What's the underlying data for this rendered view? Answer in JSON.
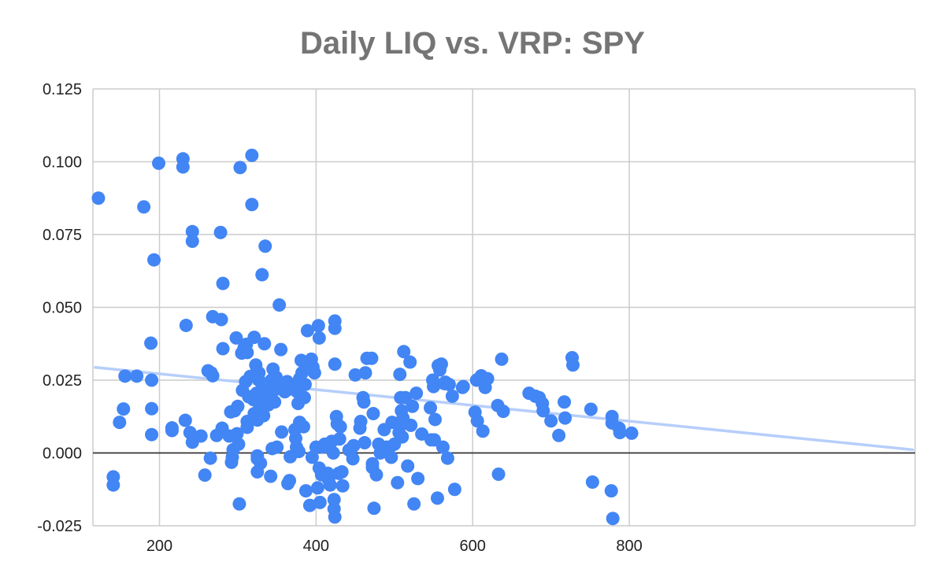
{
  "chart_data": {
    "type": "scatter",
    "title": "Daily LIQ vs. VRP: SPY",
    "xlabel": "",
    "ylabel": "",
    "xlim": [
      115,
      1165
    ],
    "ylim": [
      -0.025,
      0.125
    ],
    "x_ticks": [
      {
        "value": 200,
        "label": "200"
      },
      {
        "value": 400,
        "label": "400"
      },
      {
        "value": 600,
        "label": "600"
      },
      {
        "value": 800,
        "label": "800"
      }
    ],
    "y_ticks": [
      {
        "value": -0.025,
        "label": "-0.025"
      },
      {
        "value": 0.0,
        "label": "0.000"
      },
      {
        "value": 0.025,
        "label": "0.025"
      },
      {
        "value": 0.05,
        "label": "0.050"
      },
      {
        "value": 0.075,
        "label": "0.075"
      },
      {
        "value": 0.1,
        "label": "0.100"
      },
      {
        "value": 0.125,
        "label": "0.125"
      }
    ],
    "grid": true,
    "legend": "none",
    "point_color": "#4285f4",
    "trendline_color": "#b6cefa",
    "trendline": [
      [
        118,
        0.0294
      ],
      [
        1162,
        0.0011
      ]
    ],
    "points": [
      [
        122,
        0.0875
      ],
      [
        141,
        -0.0082
      ],
      [
        141,
        -0.011
      ],
      [
        149,
        0.0105
      ],
      [
        154,
        0.0151
      ],
      [
        156,
        0.0264
      ],
      [
        171,
        0.0264
      ],
      [
        180,
        0.0845
      ],
      [
        189,
        0.0377
      ],
      [
        190,
        0.025
      ],
      [
        190,
        0.0152
      ],
      [
        190,
        0.0063
      ],
      [
        193,
        0.0663
      ],
      [
        199,
        0.0995
      ],
      [
        216,
        0.0086
      ],
      [
        216,
        0.0077
      ],
      [
        230,
        0.101
      ],
      [
        230,
        0.0982
      ],
      [
        233,
        0.0112
      ],
      [
        234,
        0.0438
      ],
      [
        239,
        0.007
      ],
      [
        242,
        0.0037
      ],
      [
        242,
        0.076
      ],
      [
        242,
        0.0727
      ],
      [
        253,
        0.0058
      ],
      [
        258,
        -0.0076
      ],
      [
        262,
        0.0282
      ],
      [
        265,
        -0.0018
      ],
      [
        266,
        0.0275
      ],
      [
        268,
        0.0468
      ],
      [
        268,
        0.0265
      ],
      [
        273,
        0.006
      ],
      [
        278,
        0.0757
      ],
      [
        279,
        0.0458
      ],
      [
        280,
        0.0085
      ],
      [
        281,
        0.0358
      ],
      [
        281,
        0.0582
      ],
      [
        289,
        0.0058
      ],
      [
        291,
        0.0141
      ],
      [
        292,
        -0.0032
      ],
      [
        293,
        -0.0015
      ],
      [
        294,
        0.0011
      ],
      [
        296,
        0.0145
      ],
      [
        298,
        0.0395
      ],
      [
        299,
        0.0066
      ],
      [
        300,
        0.016
      ],
      [
        301,
        0.003
      ],
      [
        302,
        -0.0175
      ],
      [
        303,
        0.098
      ],
      [
        305,
        0.0343
      ],
      [
        306,
        0.0215
      ],
      [
        308,
        0.036
      ],
      [
        310,
        0.0245
      ],
      [
        311,
        0.0373
      ],
      [
        312,
        0.0345
      ],
      [
        312,
        0.0108
      ],
      [
        312,
        0.0088
      ],
      [
        314,
        0.0193
      ],
      [
        316,
        0.0263
      ],
      [
        318,
        0.1022
      ],
      [
        318,
        0.0853
      ],
      [
        320,
        0.0183
      ],
      [
        321,
        0.0397
      ],
      [
        321,
        0.0135
      ],
      [
        322,
        0.027
      ],
      [
        323,
        0.0302
      ],
      [
        324,
        0.0205
      ],
      [
        325,
        -0.001
      ],
      [
        325,
        -0.0065
      ],
      [
        325,
        -0.002
      ],
      [
        325,
        0.0113
      ],
      [
        327,
        0.0275
      ],
      [
        327,
        0.025
      ],
      [
        328,
        0.0155
      ],
      [
        329,
        -0.0035
      ],
      [
        330,
        0.021
      ],
      [
        331,
        0.0612
      ],
      [
        331,
        0.022
      ],
      [
        332,
        0.018
      ],
      [
        333,
        0.0128
      ],
      [
        334,
        0.0375
      ],
      [
        335,
        0.071
      ],
      [
        337,
        0.0205
      ],
      [
        339,
        0.0165
      ],
      [
        340,
        0.019
      ],
      [
        341,
        0.021
      ],
      [
        342,
        -0.008
      ],
      [
        343,
        0.025
      ],
      [
        344,
        0.0015
      ],
      [
        345,
        0.0288
      ],
      [
        346,
        0.0215
      ],
      [
        347,
        0.0175
      ],
      [
        349,
        0.026
      ],
      [
        350,
        0.002
      ],
      [
        351,
        0.0235
      ],
      [
        352,
        0.0225
      ],
      [
        353,
        0.0508
      ],
      [
        355,
        0.0355
      ],
      [
        356,
        0.0072
      ],
      [
        358,
        0.0225
      ],
      [
        360,
        0.021
      ],
      [
        362,
        0.0215
      ],
      [
        363,
        0.0245
      ],
      [
        364,
        -0.0105
      ],
      [
        366,
        -0.0095
      ],
      [
        367,
        -0.0013
      ],
      [
        368,
        0.022
      ],
      [
        370,
        0.0225
      ],
      [
        372,
        0.0232
      ],
      [
        373,
        0.008
      ],
      [
        374,
        0.005
      ],
      [
        375,
        0.002
      ],
      [
        376,
        0.021
      ],
      [
        377,
        0.017
      ],
      [
        378,
        0.0005
      ],
      [
        379,
        0.0255
      ],
      [
        379,
        0.0105
      ],
      [
        381,
        0.0318
      ],
      [
        382,
        0.0275
      ],
      [
        384,
        0.009
      ],
      [
        385,
        0.019
      ],
      [
        386,
        0.0235
      ],
      [
        387,
        -0.013
      ],
      [
        389,
        0.042
      ],
      [
        390,
        0.03
      ],
      [
        392,
        -0.018
      ],
      [
        394,
        0.0322
      ],
      [
        395,
        -0.0015
      ],
      [
        396,
        0.0295
      ],
      [
        398,
        0.0275
      ],
      [
        400,
        0.002
      ],
      [
        402,
        -0.012
      ],
      [
        403,
        0.0437
      ],
      [
        404,
        0.0395
      ],
      [
        404,
        -0.0052
      ],
      [
        405,
        -0.017
      ],
      [
        407,
        -0.0075
      ],
      [
        409,
        0.002
      ],
      [
        411,
        0.003
      ],
      [
        413,
        -0.008
      ],
      [
        415,
        -0.007
      ],
      [
        416,
        -0.0092
      ],
      [
        418,
        -0.011
      ],
      [
        420,
        0.004
      ],
      [
        422,
        0.0
      ],
      [
        423,
        -0.016
      ],
      [
        423,
        -0.0192
      ],
      [
        424,
        -0.022
      ],
      [
        424,
        0.0453
      ],
      [
        424,
        0.0428
      ],
      [
        424,
        0.0305
      ],
      [
        426,
        0.0125
      ],
      [
        427,
        0.01
      ],
      [
        429,
        -0.007
      ],
      [
        430,
        0.0048
      ],
      [
        431,
        0.009
      ],
      [
        433,
        -0.0065
      ],
      [
        434,
        -0.0113
      ],
      [
        442,
        0.001
      ],
      [
        445,
        0.0015
      ],
      [
        447,
        -0.002
      ],
      [
        448,
        0.0025
      ],
      [
        450,
        0.0268
      ],
      [
        456,
        0.0085
      ],
      [
        457,
        0.0108
      ],
      [
        460,
        0.019
      ],
      [
        461,
        0.0175
      ],
      [
        462,
        0.0035
      ],
      [
        463,
        0.0275
      ],
      [
        465,
        0.0325
      ],
      [
        471,
        0.0325
      ],
      [
        472,
        -0.0037
      ],
      [
        472,
        -0.005
      ],
      [
        473,
        0.0135
      ],
      [
        474,
        -0.019
      ],
      [
        477,
        -0.0075
      ],
      [
        480,
        0.003
      ],
      [
        482,
        0.0
      ],
      [
        487,
        0.008
      ],
      [
        490,
        0.002
      ],
      [
        494,
        0.002
      ],
      [
        496,
        -0.0015
      ],
      [
        497,
        0.0105
      ],
      [
        500,
        0.003
      ],
      [
        504,
        -0.0102
      ],
      [
        506,
        0.007
      ],
      [
        507,
        0.027
      ],
      [
        508,
        0.019
      ],
      [
        509,
        0.0145
      ],
      [
        510,
        0.0055
      ],
      [
        510,
        0.01
      ],
      [
        511,
        0.012
      ],
      [
        512,
        0.0348
      ],
      [
        514,
        0.019
      ],
      [
        517,
        -0.0045
      ],
      [
        520,
        0.0312
      ],
      [
        521,
        0.0095
      ],
      [
        523,
        0.016
      ],
      [
        525,
        -0.0175
      ],
      [
        528,
        0.0205
      ],
      [
        530,
        -0.0088
      ],
      [
        535,
        0.0065
      ],
      [
        546,
        0.0155
      ],
      [
        547,
        0.0045
      ],
      [
        549,
        0.025
      ],
      [
        550,
        0.0228
      ],
      [
        551,
        0.0045
      ],
      [
        552,
        0.0115
      ],
      [
        555,
        -0.0155
      ],
      [
        556,
        0.03
      ],
      [
        558,
        0.0285
      ],
      [
        560,
        0.0305
      ],
      [
        562,
        0.002
      ],
      [
        564,
        0.0238
      ],
      [
        565,
        0.0243
      ],
      [
        568,
        -0.0018
      ],
      [
        570,
        0.0235
      ],
      [
        574,
        0.0195
      ],
      [
        577,
        -0.0125
      ],
      [
        587,
        0.0225
      ],
      [
        588,
        0.0228
      ],
      [
        603,
        0.014
      ],
      [
        605,
        0.025
      ],
      [
        606,
        0.011
      ],
      [
        608,
        0.0255
      ],
      [
        611,
        0.0265
      ],
      [
        613,
        0.0075
      ],
      [
        616,
        0.0225
      ],
      [
        619,
        0.0255
      ],
      [
        632,
        0.0163
      ],
      [
        633,
        -0.0073
      ],
      [
        637,
        0.0322
      ],
      [
        639,
        0.0143
      ],
      [
        672,
        0.0205
      ],
      [
        680,
        0.0195
      ],
      [
        685,
        0.019
      ],
      [
        689,
        0.017
      ],
      [
        690,
        0.0145
      ],
      [
        700,
        0.011
      ],
      [
        710,
        0.006
      ],
      [
        717,
        0.0175
      ],
      [
        718,
        0.012
      ],
      [
        727,
        0.0327
      ],
      [
        728,
        0.0302
      ],
      [
        751,
        0.015
      ],
      [
        753,
        -0.01
      ],
      [
        777,
        -0.013
      ],
      [
        778,
        0.0125
      ],
      [
        778,
        0.0103
      ],
      [
        779,
        -0.0225
      ],
      [
        787,
        0.0085
      ],
      [
        788,
        0.007
      ],
      [
        803,
        0.0068
      ]
    ]
  }
}
